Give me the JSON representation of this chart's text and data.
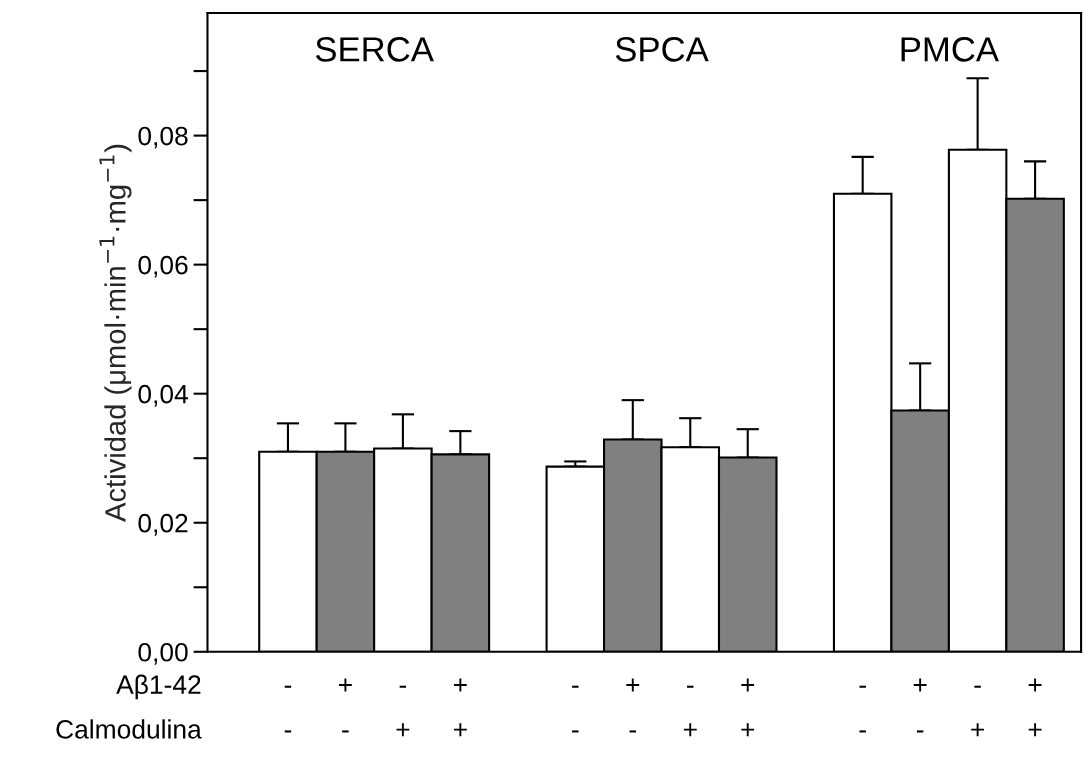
{
  "chart_data": {
    "type": "bar",
    "categories": [
      "SERCA",
      "SPCA",
      "PMCA"
    ],
    "ylabel": "Actividad (μmol·min$^{−1}$·mg$^{−1}$)",
    "ylim": [
      0,
      0.099
    ],
    "yticks": [
      {
        "value": 0.0,
        "label": "0,00"
      },
      {
        "value": 0.01,
        "label": null
      },
      {
        "value": 0.02,
        "label": "0,02"
      },
      {
        "value": 0.03,
        "label": null
      },
      {
        "value": 0.04,
        "label": "0,04"
      },
      {
        "value": 0.05,
        "label": null
      },
      {
        "value": 0.06,
        "label": "0,06"
      },
      {
        "value": 0.07,
        "label": null
      },
      {
        "value": 0.08,
        "label": "0,08"
      },
      {
        "value": 0.09,
        "label": null
      }
    ],
    "series": [
      {
        "color": "#ffffff",
        "values": [
          0.031,
          0.0287,
          0.071
        ],
        "errors": [
          [
            0.031,
            0.0354
          ],
          [
            0.0287,
            0.0295
          ],
          [
            0.071,
            0.0767
          ]
        ]
      },
      {
        "color": "#808080",
        "values": [
          0.031,
          0.0329,
          0.0374
        ],
        "errors": [
          [
            0.031,
            0.0354
          ],
          [
            0.0329,
            0.039
          ],
          [
            0.0374,
            0.0447
          ]
        ]
      },
      {
        "color": "#ffffff",
        "values": [
          0.0315,
          0.0317,
          0.0778
        ],
        "errors": [
          [
            0.0315,
            0.0368
          ],
          [
            0.0317,
            0.0362
          ],
          [
            0.0778,
            0.0889
          ]
        ]
      },
      {
        "color": "#808080",
        "values": [
          0.0306,
          0.0301,
          0.0702
        ],
        "errors": [
          [
            0.0306,
            0.0342
          ],
          [
            0.0301,
            0.0345
          ],
          [
            0.0702,
            0.076
          ]
        ]
      }
    ],
    "annotations": [
      "Aβ1-42",
      "Calmodulina",
      "- + - +",
      "- + - +",
      "- + - +",
      "- - + +",
      "- - + +",
      "- - + +"
    ],
    "grid": false,
    "legend": false
  }
}
